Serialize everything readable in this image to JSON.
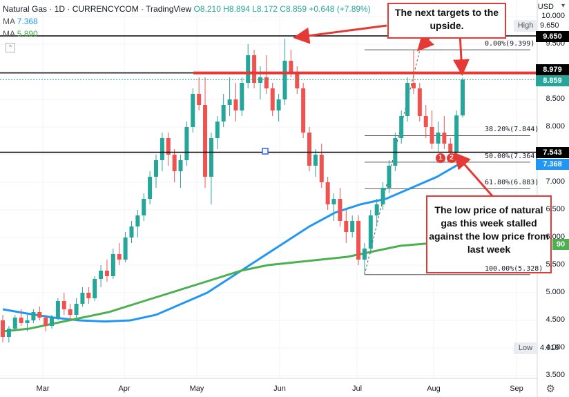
{
  "header": {
    "symbol": "Natural Gas · 1D · CURRENCYCOM · TradingView",
    "ohlc": "O8.210 H8.894 L8.172 C8.859 +0.648 (+7.89%)",
    "ma1_label": "MA",
    "ma1_value": "7.368",
    "ma2_label": "MA",
    "ma2_value": "5.890"
  },
  "axis": {
    "currency": "USD",
    "price_ticks": [
      "10.000",
      "9.500",
      "9.000",
      "8.500",
      "8.000",
      "7.500",
      "7.000",
      "6.500",
      "6.000",
      "5.500",
      "5.000",
      "4.500",
      "4.000",
      "3.500"
    ],
    "month_labels": [
      "Mar",
      "Apr",
      "May",
      "Jun",
      "Jul",
      "Aug",
      "Sep"
    ]
  },
  "price_tags": {
    "high_label": "High",
    "high_value": "9.650",
    "level_9650": "9.650",
    "level_8979": "8.979",
    "last": "8.859",
    "level_7543": "7.543",
    "ma_blue": "7.368",
    "ma_green_partial": "90",
    "low_label": "Low",
    "low_value": "4.019"
  },
  "fibs": [
    {
      "label": "0.00%(9.399)"
    },
    {
      "label": "38.20%(7.844)"
    },
    {
      "label": "50.00%(7.364)"
    },
    {
      "label": "61.80%(6.883)"
    },
    {
      "label": "100.00%(5.328)"
    }
  ],
  "callouts": {
    "top": "The next targets to the upside.",
    "bottom": "The low price of natural gas this week stalled against the low price from last week"
  },
  "badges": [
    "1",
    "2"
  ],
  "colors": {
    "up": "#26a69a",
    "down": "#ef5350",
    "ma_blue": "#2196f3",
    "ma_green": "#4caf50",
    "annot": "#e53935"
  },
  "chart_data": {
    "type": "candlestick",
    "ylim": [
      3.5,
      10.0
    ],
    "levels": [
      9.65,
      8.979,
      7.543
    ],
    "fib_levels": [
      9.399,
      7.844,
      7.364,
      6.883,
      5.328
    ],
    "candles": [
      [
        4.5,
        4.6,
        4.1,
        4.2
      ],
      [
        4.2,
        4.4,
        4.1,
        4.35
      ],
      [
        4.35,
        4.6,
        4.3,
        4.55
      ],
      [
        4.55,
        4.7,
        4.4,
        4.45
      ],
      [
        4.45,
        4.6,
        4.3,
        4.5
      ],
      [
        4.5,
        4.7,
        4.45,
        4.65
      ],
      [
        4.65,
        4.75,
        4.5,
        4.55
      ],
      [
        4.55,
        4.6,
        4.3,
        4.4
      ],
      [
        4.4,
        4.6,
        4.35,
        4.55
      ],
      [
        4.55,
        4.9,
        4.5,
        4.85
      ],
      [
        4.85,
        5.0,
        4.6,
        4.7
      ],
      [
        4.7,
        4.8,
        4.5,
        4.6
      ],
      [
        4.6,
        4.9,
        4.55,
        4.8
      ],
      [
        4.8,
        5.1,
        4.75,
        5.0
      ],
      [
        5.0,
        5.1,
        4.8,
        4.9
      ],
      [
        4.9,
        5.3,
        4.85,
        5.25
      ],
      [
        5.25,
        5.5,
        5.1,
        5.4
      ],
      [
        5.4,
        5.6,
        5.2,
        5.3
      ],
      [
        5.3,
        5.8,
        5.25,
        5.7
      ],
      [
        5.7,
        5.9,
        5.5,
        5.6
      ],
      [
        5.6,
        6.1,
        5.55,
        6.0
      ],
      [
        6.0,
        6.3,
        5.9,
        6.2
      ],
      [
        6.2,
        6.5,
        6.0,
        6.4
      ],
      [
        6.4,
        6.8,
        6.3,
        6.7
      ],
      [
        6.7,
        7.2,
        6.6,
        7.1
      ],
      [
        7.1,
        7.5,
        6.9,
        7.4
      ],
      [
        7.4,
        7.9,
        7.2,
        7.8
      ],
      [
        7.8,
        7.9,
        7.3,
        7.5
      ],
      [
        7.5,
        7.6,
        7.0,
        7.2
      ],
      [
        7.2,
        7.5,
        6.9,
        7.4
      ],
      [
        7.4,
        8.1,
        7.3,
        8.0
      ],
      [
        8.0,
        8.7,
        7.9,
        8.6
      ],
      [
        8.6,
        8.9,
        8.3,
        8.4
      ],
      [
        8.4,
        8.9,
        6.9,
        7.1
      ],
      [
        7.1,
        7.9,
        6.6,
        7.8
      ],
      [
        7.8,
        8.2,
        7.6,
        8.1
      ],
      [
        8.1,
        8.6,
        8.0,
        8.4
      ],
      [
        8.4,
        8.9,
        8.2,
        8.5
      ],
      [
        8.5,
        8.8,
        8.1,
        8.3
      ],
      [
        8.3,
        8.9,
        8.2,
        8.8
      ],
      [
        8.8,
        9.5,
        8.7,
        9.3
      ],
      [
        9.3,
        9.4,
        8.7,
        8.8
      ],
      [
        8.8,
        9.1,
        8.5,
        8.9
      ],
      [
        8.9,
        9.3,
        8.6,
        8.7
      ],
      [
        8.7,
        8.8,
        8.2,
        8.3
      ],
      [
        8.3,
        8.6,
        8.1,
        8.5
      ],
      [
        8.5,
        9.6,
        8.4,
        9.2
      ],
      [
        9.2,
        9.4,
        8.9,
        9.0
      ],
      [
        9.0,
        9.1,
        8.6,
        8.7
      ],
      [
        8.7,
        8.8,
        7.8,
        7.9
      ],
      [
        7.9,
        8.0,
        7.2,
        7.3
      ],
      [
        7.3,
        7.6,
        7.1,
        7.5
      ],
      [
        7.5,
        7.7,
        6.9,
        7.0
      ],
      [
        7.0,
        7.1,
        6.5,
        6.6
      ],
      [
        6.6,
        6.8,
        6.3,
        6.7
      ],
      [
        6.7,
        6.9,
        6.2,
        6.3
      ],
      [
        6.3,
        6.5,
        5.9,
        6.1
      ],
      [
        6.1,
        6.4,
        6.0,
        6.3
      ],
      [
        6.3,
        6.4,
        5.5,
        5.6
      ],
      [
        5.6,
        5.9,
        5.33,
        5.8
      ],
      [
        5.8,
        6.5,
        5.7,
        6.4
      ],
      [
        6.4,
        6.7,
        6.2,
        6.6
      ],
      [
        6.6,
        7.0,
        6.5,
        6.9
      ],
      [
        6.9,
        7.4,
        6.8,
        7.3
      ],
      [
        7.3,
        7.9,
        7.2,
        7.8
      ],
      [
        7.8,
        8.3,
        7.7,
        8.2
      ],
      [
        8.2,
        8.9,
        8.1,
        8.8
      ],
      [
        8.8,
        9.4,
        8.6,
        8.7
      ],
      [
        8.7,
        8.8,
        8.1,
        8.2
      ],
      [
        8.2,
        8.4,
        7.8,
        8.0
      ],
      [
        8.0,
        8.3,
        7.6,
        7.7
      ],
      [
        7.7,
        8.1,
        7.55,
        7.9
      ],
      [
        7.9,
        8.2,
        7.6,
        7.7
      ],
      [
        7.7,
        7.8,
        7.45,
        7.55
      ],
      [
        7.55,
        8.3,
        7.5,
        8.21
      ],
      [
        8.21,
        8.894,
        8.172,
        8.859
      ]
    ],
    "ma_blue": [
      4.7,
      4.62,
      4.55,
      4.5,
      4.48,
      4.5,
      4.6,
      4.8,
      5.0,
      5.3,
      5.6,
      5.9,
      6.2,
      6.45,
      6.6,
      6.7,
      6.9,
      7.1,
      7.368
    ],
    "ma_green": [
      4.3,
      4.35,
      4.45,
      4.55,
      4.65,
      4.8,
      4.95,
      5.1,
      5.25,
      5.4,
      5.5,
      5.55,
      5.6,
      5.65,
      5.75,
      5.85,
      5.89
    ]
  }
}
